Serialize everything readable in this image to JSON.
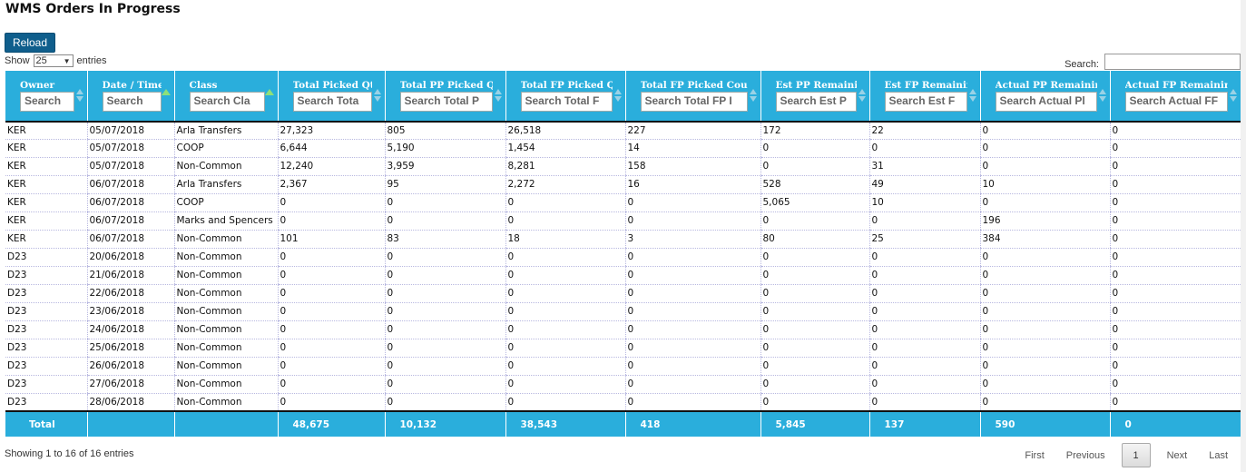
{
  "page": {
    "title": "WMS Orders In Progress",
    "reload_label": "Reload"
  },
  "length": {
    "show": "Show",
    "value": "25",
    "entries": "entries"
  },
  "search": {
    "label": "Search:",
    "value": ""
  },
  "columns": [
    {
      "label": "Owner",
      "placeholder": "Search",
      "sort": "both"
    },
    {
      "label": "Date / Time",
      "placeholder": "Search",
      "sort": "asc"
    },
    {
      "label": "Class",
      "placeholder": "Search Cla",
      "sort": "asc"
    },
    {
      "label": "Total Picked Qty",
      "placeholder": "Search Tota",
      "sort": "both"
    },
    {
      "label": "Total PP Picked Qty",
      "placeholder": "Search Total P",
      "sort": "both"
    },
    {
      "label": "Total FP Picked Qty",
      "placeholder": "Search Total F",
      "sort": "both"
    },
    {
      "label": "Total FP Picked Count",
      "placeholder": "Search Total FP I",
      "sort": "both"
    },
    {
      "label": "Est PP Remaining",
      "placeholder": "Search Est P",
      "sort": "both"
    },
    {
      "label": "Est FP Remaining",
      "placeholder": "Search Est F",
      "sort": "both"
    },
    {
      "label": "Actual PP Remaining",
      "placeholder": "Search Actual Pl",
      "sort": "both"
    },
    {
      "label": "Actual FP Remaining",
      "placeholder": "Search Actual FF",
      "sort": "both"
    }
  ],
  "rows": [
    [
      "KER",
      "05/07/2018",
      "Arla Transfers",
      "27,323",
      "805",
      "26,518",
      "227",
      "172",
      "22",
      "0",
      "0"
    ],
    [
      "KER",
      "05/07/2018",
      "COOP",
      "6,644",
      "5,190",
      "1,454",
      "14",
      "0",
      "0",
      "0",
      "0"
    ],
    [
      "KER",
      "05/07/2018",
      "Non-Common",
      "12,240",
      "3,959",
      "8,281",
      "158",
      "0",
      "31",
      "0",
      "0"
    ],
    [
      "KER",
      "06/07/2018",
      "Arla Transfers",
      "2,367",
      "95",
      "2,272",
      "16",
      "528",
      "49",
      "10",
      "0"
    ],
    [
      "KER",
      "06/07/2018",
      "COOP",
      "0",
      "0",
      "0",
      "0",
      "5,065",
      "10",
      "0",
      "0"
    ],
    [
      "KER",
      "06/07/2018",
      "Marks and Spencers",
      "0",
      "0",
      "0",
      "0",
      "0",
      "0",
      "196",
      "0"
    ],
    [
      "KER",
      "06/07/2018",
      "Non-Common",
      "101",
      "83",
      "18",
      "3",
      "80",
      "25",
      "384",
      "0"
    ],
    [
      "D23",
      "20/06/2018",
      "Non-Common",
      "0",
      "0",
      "0",
      "0",
      "0",
      "0",
      "0",
      "0"
    ],
    [
      "D23",
      "21/06/2018",
      "Non-Common",
      "0",
      "0",
      "0",
      "0",
      "0",
      "0",
      "0",
      "0"
    ],
    [
      "D23",
      "22/06/2018",
      "Non-Common",
      "0",
      "0",
      "0",
      "0",
      "0",
      "0",
      "0",
      "0"
    ],
    [
      "D23",
      "23/06/2018",
      "Non-Common",
      "0",
      "0",
      "0",
      "0",
      "0",
      "0",
      "0",
      "0"
    ],
    [
      "D23",
      "24/06/2018",
      "Non-Common",
      "0",
      "0",
      "0",
      "0",
      "0",
      "0",
      "0",
      "0"
    ],
    [
      "D23",
      "25/06/2018",
      "Non-Common",
      "0",
      "0",
      "0",
      "0",
      "0",
      "0",
      "0",
      "0"
    ],
    [
      "D23",
      "26/06/2018",
      "Non-Common",
      "0",
      "0",
      "0",
      "0",
      "0",
      "0",
      "0",
      "0"
    ],
    [
      "D23",
      "27/06/2018",
      "Non-Common",
      "0",
      "0",
      "0",
      "0",
      "0",
      "0",
      "0",
      "0"
    ],
    [
      "D23",
      "28/06/2018",
      "Non-Common",
      "0",
      "0",
      "0",
      "0",
      "0",
      "0",
      "0",
      "0"
    ]
  ],
  "totals": [
    "Total",
    "",
    "",
    "48,675",
    "10,132",
    "38,543",
    "418",
    "5,845",
    "137",
    "590",
    "0"
  ],
  "footer": {
    "info": "Showing 1 to 16 of 16 entries",
    "first": "First",
    "previous": "Previous",
    "current": "1",
    "next": "Next",
    "last": "Last"
  },
  "colors": {
    "header_bg": "#2aaedc",
    "reload_bg": "#0f5e8c",
    "sort_active": "#8ee07a"
  },
  "icons": {
    "sort_both": "sort-both-icon",
    "sort_asc": "sort-asc-icon",
    "select_caret": "chevron-down-icon"
  }
}
